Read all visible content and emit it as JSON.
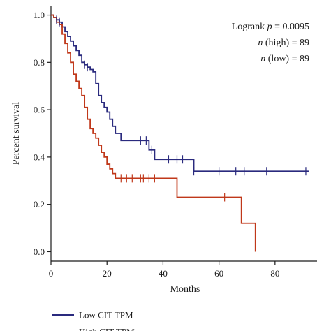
{
  "chart_data": {
    "type": "line",
    "title": "",
    "xlabel": "Months",
    "ylabel": "Percent survival",
    "xlim": [
      0,
      95
    ],
    "ylim": [
      -0.04,
      1.04
    ],
    "xticks": [
      0,
      20,
      40,
      60,
      80
    ],
    "xtick_labels": [
      "0",
      "20",
      "40",
      "60",
      "80"
    ],
    "yticks": [
      0.0,
      0.2,
      0.4,
      0.6,
      0.8,
      1.0
    ],
    "ytick_labels": [
      "0.0",
      "0.2",
      "0.4",
      "0.6",
      "0.8",
      "1.0"
    ],
    "grid": false,
    "annotations": [
      {
        "prefix": "Logrank ",
        "var": "p",
        "suffix": " = 0.0095"
      },
      {
        "prefix": "",
        "var": "n",
        "suffix": " (high) = 89"
      },
      {
        "prefix": "",
        "var": "n",
        "suffix": " (low) = 89"
      }
    ],
    "legend_position": "bottom-left",
    "series": [
      {
        "name": "Low CIT TPM",
        "color": "#2a2a7e",
        "x": [
          0,
          1,
          2,
          3,
          4,
          5,
          6,
          7,
          8,
          9,
          10,
          11,
          12,
          13,
          14,
          15,
          16,
          17,
          18,
          19,
          20,
          21,
          22,
          23,
          25,
          29,
          35,
          37,
          51,
          92
        ],
        "y": [
          1.0,
          0.99,
          0.98,
          0.97,
          0.95,
          0.93,
          0.91,
          0.89,
          0.87,
          0.85,
          0.83,
          0.8,
          0.79,
          0.78,
          0.77,
          0.76,
          0.71,
          0.66,
          0.63,
          0.61,
          0.59,
          0.56,
          0.53,
          0.5,
          0.47,
          0.47,
          0.43,
          0.39,
          0.34,
          0.34
        ],
        "censor_x": [
          2,
          3,
          12,
          13,
          32,
          34,
          36,
          42,
          45,
          47,
          51,
          60,
          66,
          69,
          77,
          91
        ]
      },
      {
        "name": "High CIT TPM",
        "color": "#c0381a",
        "x": [
          0,
          1,
          2,
          3,
          4,
          5,
          6,
          7,
          8,
          9,
          10,
          11,
          12,
          13,
          14,
          15,
          16,
          17,
          18,
          19,
          20,
          21,
          22,
          23,
          25,
          45,
          68,
          73,
          73
        ],
        "y": [
          1.0,
          0.99,
          0.97,
          0.96,
          0.92,
          0.88,
          0.84,
          0.8,
          0.75,
          0.72,
          0.69,
          0.66,
          0.61,
          0.56,
          0.52,
          0.5,
          0.48,
          0.45,
          0.42,
          0.4,
          0.37,
          0.35,
          0.33,
          0.31,
          0.31,
          0.23,
          0.12,
          0.12,
          0.0
        ],
        "censor_x": [
          25,
          27,
          29,
          32,
          33,
          35,
          37,
          62
        ]
      }
    ]
  }
}
